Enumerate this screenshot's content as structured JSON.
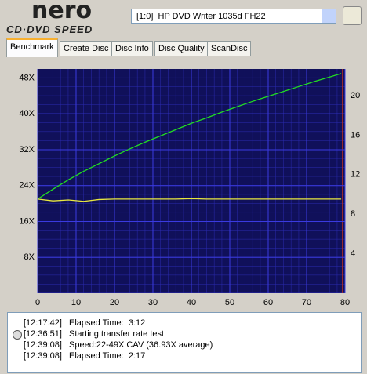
{
  "header": {
    "logo": "nero",
    "logo_sub": "CD·DVD SPEED",
    "drive": "[1:0]  HP DVD Writer 1035d FH22"
  },
  "tabs": [
    "Benchmark",
    "Create Disc",
    "Disc Info",
    "Disc Quality",
    "ScanDisc"
  ],
  "chart_data": {
    "type": "line",
    "x": [
      0,
      4,
      8,
      12,
      16,
      20,
      24,
      28,
      32,
      36,
      40,
      44,
      48,
      52,
      56,
      60,
      64,
      68,
      72,
      76,
      79
    ],
    "series": [
      {
        "color": "#22dd22",
        "values": [
          21,
          23.2,
          25.3,
          27.2,
          28.9,
          30.6,
          32.2,
          33.7,
          35.1,
          36.5,
          37.9,
          39.1,
          40.4,
          41.6,
          42.8,
          43.9,
          45,
          46.1,
          47.2,
          48.2,
          49
        ]
      },
      {
        "color": "#e8e840",
        "values": [
          21,
          20.6,
          20.8,
          20.5,
          20.9,
          21,
          21,
          21,
          21,
          21,
          21.1,
          21,
          21,
          21,
          21,
          21,
          21,
          21,
          21,
          21,
          21
        ]
      }
    ],
    "xlim": [
      0,
      80
    ],
    "xticks": [
      0,
      10,
      20,
      30,
      40,
      50,
      60,
      70,
      80
    ],
    "ylim": [
      0,
      50
    ],
    "yticks": [
      {
        "value": 8,
        "label": "8X"
      },
      {
        "value": 16,
        "label": "16X"
      },
      {
        "value": 24,
        "label": "24X"
      },
      {
        "value": 32,
        "label": "32X"
      },
      {
        "value": 40,
        "label": "40X"
      },
      {
        "value": 48,
        "label": "48X"
      }
    ],
    "y2lim": [
      0,
      22.7
    ],
    "y2ticks": [
      4,
      8,
      12,
      16,
      20
    ],
    "grid": true
  },
  "log": [
    {
      "time": "[12:17:42]",
      "text": "Elapsed Time:  3:12"
    },
    {
      "time": "[12:36:51]",
      "text": "Starting transfer rate test"
    },
    {
      "time": "[12:39:08]",
      "text": "Speed:22-49X CAV (36.93X average)"
    },
    {
      "time": "[12:39:08]",
      "text": "Elapsed Time:  2:17"
    }
  ]
}
